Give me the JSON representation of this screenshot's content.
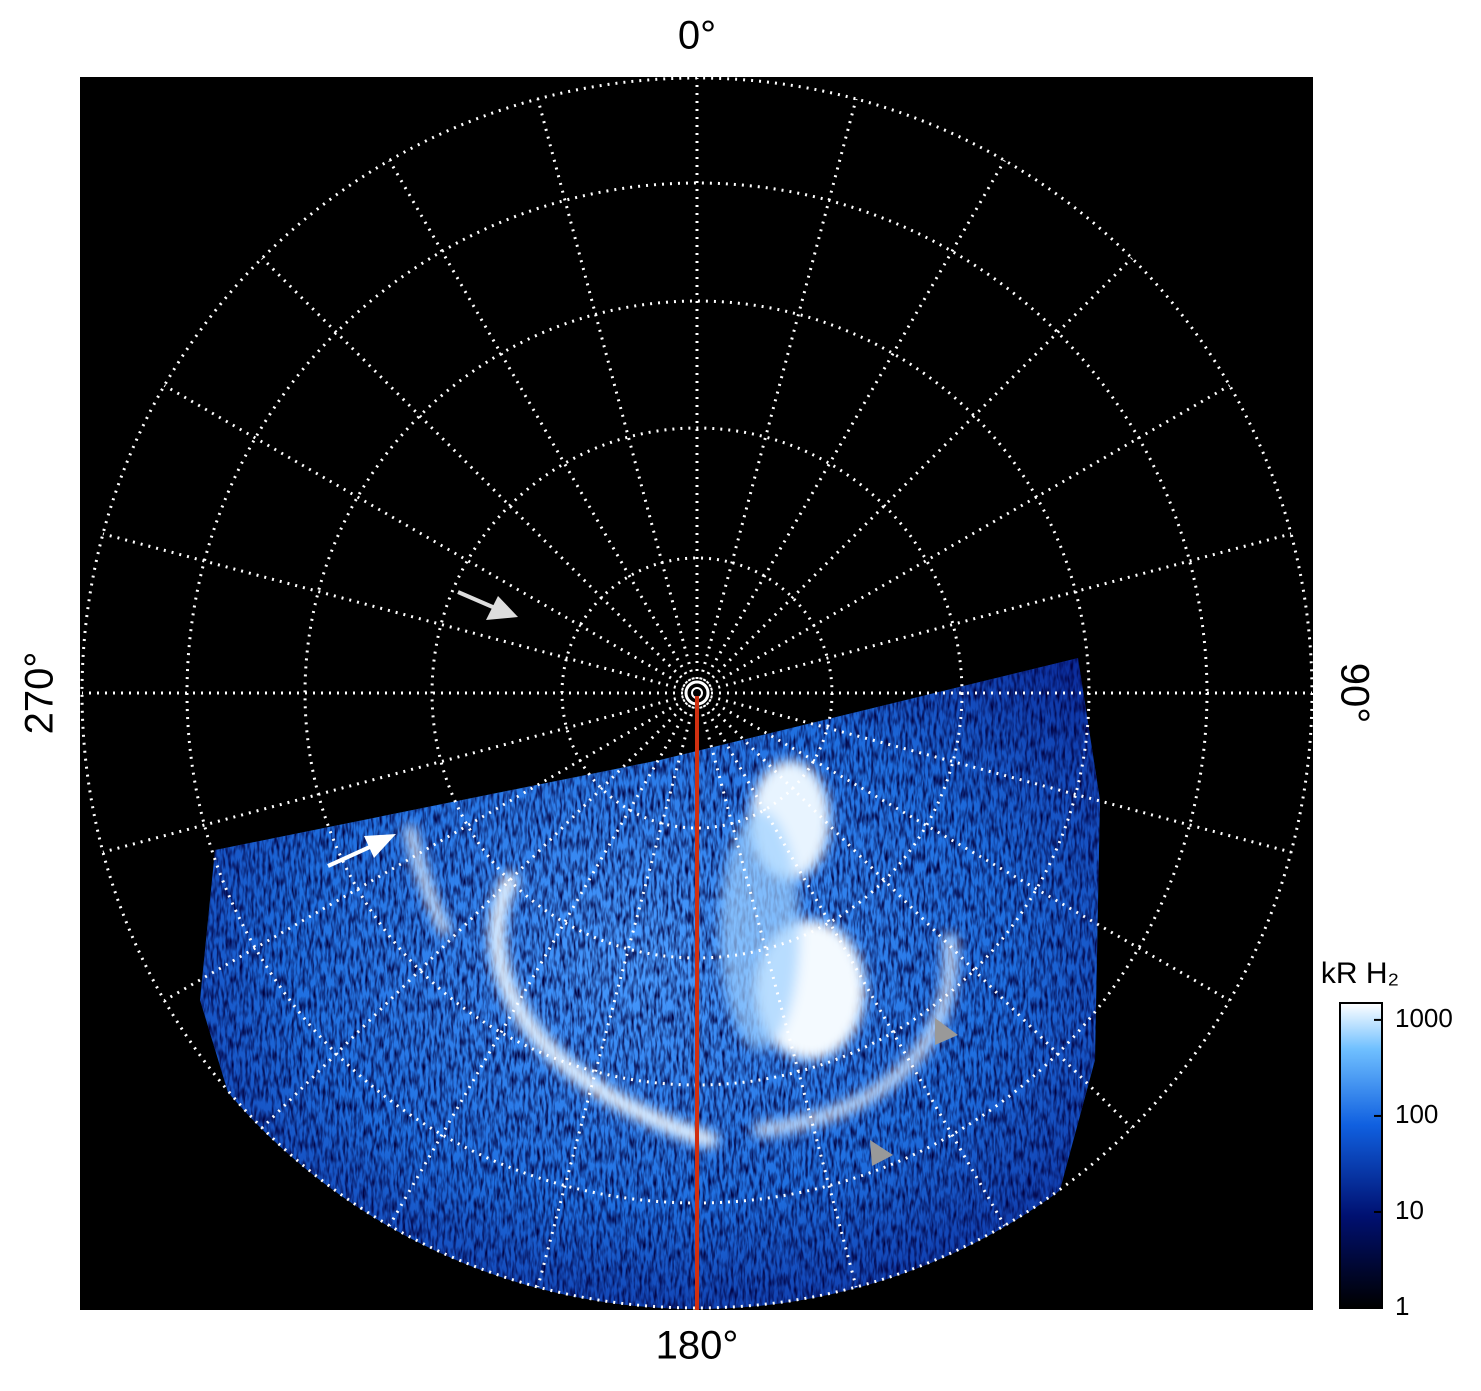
{
  "chart_data": {
    "type": "polar-image",
    "angle_ticks": [
      {
        "value": 0,
        "label": "0°"
      },
      {
        "value": 90,
        "label": "90°"
      },
      {
        "value": 180,
        "label": "180°"
      },
      {
        "value": 270,
        "label": "270°"
      }
    ],
    "colorbar_label": "kR H₂",
    "clim": [
      1,
      1500
    ],
    "cticks": [
      1,
      10,
      100,
      1000
    ],
    "color_scale": "log"
  }
}
